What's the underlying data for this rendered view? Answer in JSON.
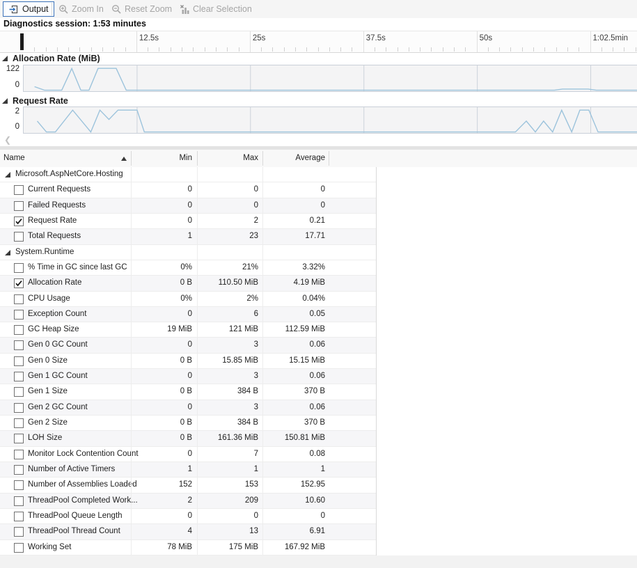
{
  "toolbar": {
    "output_label": "Output",
    "zoom_in_label": "Zoom In",
    "reset_zoom_label": "Reset Zoom",
    "clear_selection_label": "Clear Selection"
  },
  "session_label": "Diagnostics session: 1:53 minutes",
  "timeline": {
    "labels": [
      "12.5s",
      "25s",
      "37.5s",
      "50s",
      "1:02.5min"
    ],
    "majors_s": [
      12.5,
      25,
      37.5,
      50,
      62.5
    ],
    "minor_step_s": 1.25,
    "total_s": 67.6,
    "marker_s": 0
  },
  "chart_data": [
    {
      "type": "line",
      "title": "Allocation Rate (MiB)",
      "ylabel_top": "122",
      "ylabel_bottom": "0",
      "ylim": [
        0,
        122
      ],
      "xlim": [
        0,
        67.6
      ],
      "grid": "vertical-major-ticks",
      "line_color": "#9cc3dc",
      "points": [
        [
          1.2,
          18
        ],
        [
          2.3,
          0
        ],
        [
          4.2,
          0
        ],
        [
          5.3,
          110.5
        ],
        [
          6.3,
          0
        ],
        [
          7.2,
          0
        ],
        [
          8.2,
          111
        ],
        [
          10.2,
          111
        ],
        [
          11.3,
          0
        ],
        [
          58.5,
          0
        ],
        [
          59.4,
          6
        ],
        [
          62.2,
          6
        ],
        [
          63.1,
          0
        ],
        [
          67.6,
          0
        ]
      ]
    },
    {
      "type": "line",
      "title": "Request Rate",
      "ylabel_top": "2",
      "ylabel_bottom": "0",
      "ylim": [
        0,
        2.2
      ],
      "xlim": [
        0,
        67.6
      ],
      "grid": "vertical-major-ticks",
      "line_color": "#9cc3dc",
      "points": [
        [
          1.5,
          1
        ],
        [
          2.5,
          0
        ],
        [
          3.5,
          0
        ],
        [
          5.4,
          2
        ],
        [
          7.4,
          0
        ],
        [
          8.4,
          2
        ],
        [
          9.4,
          1.15
        ],
        [
          10.4,
          2
        ],
        [
          12.5,
          2
        ],
        [
          13.3,
          0
        ],
        [
          54.2,
          0
        ],
        [
          55.4,
          1
        ],
        [
          56.4,
          0
        ],
        [
          57.3,
          1
        ],
        [
          58.3,
          0
        ],
        [
          59.3,
          2
        ],
        [
          60.4,
          0
        ],
        [
          61.3,
          2
        ],
        [
          62.3,
          2
        ],
        [
          63.3,
          0
        ],
        [
          67.6,
          0
        ]
      ]
    }
  ],
  "table": {
    "columns": {
      "name": "Name",
      "min": "Min",
      "max": "Max",
      "avg": "Average"
    },
    "sort": {
      "column": "Name",
      "direction": "ascending"
    },
    "groups": [
      {
        "name": "Microsoft.AspNetCore.Hosting",
        "rows": [
          {
            "label": "Current Requests",
            "checked": false,
            "min": "0",
            "max": "0",
            "avg": "0"
          },
          {
            "label": "Failed Requests",
            "checked": false,
            "min": "0",
            "max": "0",
            "avg": "0"
          },
          {
            "label": "Request Rate",
            "checked": true,
            "min": "0",
            "max": "2",
            "avg": "0.21"
          },
          {
            "label": "Total Requests",
            "checked": false,
            "min": "1",
            "max": "23",
            "avg": "17.71"
          }
        ]
      },
      {
        "name": "System.Runtime",
        "rows": [
          {
            "label": "% Time in GC since last GC",
            "checked": false,
            "min": "0%",
            "max": "21%",
            "avg": "3.32%"
          },
          {
            "label": "Allocation Rate",
            "checked": true,
            "min": "0 B",
            "max": "110.50 MiB",
            "avg": "4.19 MiB"
          },
          {
            "label": "CPU Usage",
            "checked": false,
            "min": "0%",
            "max": "2%",
            "avg": "0.04%"
          },
          {
            "label": "Exception Count",
            "checked": false,
            "min": "0",
            "max": "6",
            "avg": "0.05"
          },
          {
            "label": "GC Heap Size",
            "checked": false,
            "min": "19 MiB",
            "max": "121 MiB",
            "avg": "112.59 MiB"
          },
          {
            "label": "Gen 0 GC Count",
            "checked": false,
            "min": "0",
            "max": "3",
            "avg": "0.06"
          },
          {
            "label": "Gen 0 Size",
            "checked": false,
            "min": "0 B",
            "max": "15.85 MiB",
            "avg": "15.15 MiB"
          },
          {
            "label": "Gen 1 GC Count",
            "checked": false,
            "min": "0",
            "max": "3",
            "avg": "0.06"
          },
          {
            "label": "Gen 1 Size",
            "checked": false,
            "min": "0 B",
            "max": "384 B",
            "avg": "370 B"
          },
          {
            "label": "Gen 2 GC Count",
            "checked": false,
            "min": "0",
            "max": "3",
            "avg": "0.06"
          },
          {
            "label": "Gen 2 Size",
            "checked": false,
            "min": "0 B",
            "max": "384 B",
            "avg": "370 B"
          },
          {
            "label": "LOH Size",
            "checked": false,
            "min": "0 B",
            "max": "161.36 MiB",
            "avg": "150.81 MiB"
          },
          {
            "label": "Monitor Lock Contention Count",
            "checked": false,
            "min": "0",
            "max": "7",
            "avg": "0.08"
          },
          {
            "label": "Number of Active Timers",
            "checked": false,
            "min": "1",
            "max": "1",
            "avg": "1"
          },
          {
            "label": "Number of Assemblies Loaded",
            "checked": false,
            "min": "152",
            "max": "153",
            "avg": "152.95"
          },
          {
            "label": "ThreadPool Completed Work...",
            "checked": false,
            "min": "2",
            "max": "209",
            "avg": "10.60"
          },
          {
            "label": "ThreadPool Queue Length",
            "checked": false,
            "min": "0",
            "max": "0",
            "avg": "0"
          },
          {
            "label": "ThreadPool Thread Count",
            "checked": false,
            "min": "4",
            "max": "13",
            "avg": "6.91"
          },
          {
            "label": "Working Set",
            "checked": false,
            "min": "78 MiB",
            "max": "175 MiB",
            "avg": "167.92 MiB"
          }
        ]
      }
    ]
  },
  "icons": {
    "output": "output-window-icon",
    "zoom_in": "magnifier-plus-icon",
    "reset_zoom": "magnifier-minus-icon",
    "clear_selection": "chart-clear-icon",
    "scroll_left": "chevron-left-icon"
  },
  "colors": {
    "accent_blue_border": "#3c72b9",
    "chart_line": "#9cc3dc",
    "chart_bg": "#f4f4f5",
    "chart_border": "#c9cfd8",
    "disabled_text": "#a5a5a5",
    "toolbar_bg": "#f5f5f5"
  }
}
